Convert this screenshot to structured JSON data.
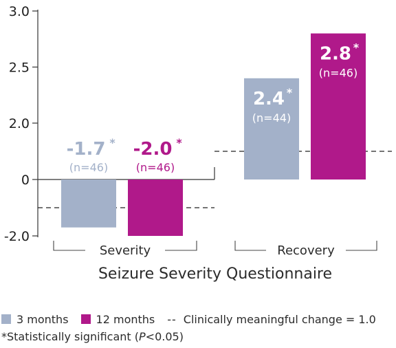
{
  "chart_data": {
    "type": "bar",
    "xlabel": "Seizure Severity Questionnaire",
    "ylabel": "",
    "ylim": [
      -2.0,
      3.0
    ],
    "y_ticks": [
      {
        "value": 3.0,
        "label": "3.0"
      },
      {
        "value": 2.5,
        "label": "2.5"
      },
      {
        "value": 2.0,
        "label": "2.0"
      },
      {
        "value": 0,
        "label": "0"
      },
      {
        "value": -2.0,
        "label": "-2.0"
      }
    ],
    "axis_break": true,
    "categories": [
      "Severity",
      "Recovery"
    ],
    "series": [
      {
        "name": "3 months",
        "color": "#a3b1c9",
        "values": [
          -1.7,
          2.4
        ],
        "labels": [
          "-1.7",
          "2.4"
        ],
        "n_labels": [
          "(n=46)",
          "(n=44)"
        ]
      },
      {
        "name": "12 months",
        "color": "#b0198a",
        "values": [
          -2.0,
          2.8
        ],
        "labels": [
          "-2.0",
          "2.8"
        ],
        "n_labels": [
          "(n=46)",
          "(n=46)"
        ]
      }
    ],
    "significance_marker": "*",
    "reference_lines": [
      {
        "category": "Severity",
        "value": -1.0
      },
      {
        "category": "Recovery",
        "value": 1.0
      }
    ],
    "grid": false,
    "legend_position": "bottom"
  },
  "legend": {
    "items": [
      "3 months",
      "12 months"
    ],
    "dashed_glyph": "--",
    "dashed_label": "Clinically meaningful change = 1.0"
  },
  "footnote": {
    "prefix": "*Statistically significant (",
    "p_symbol": "P",
    "suffix": "<0.05)"
  }
}
